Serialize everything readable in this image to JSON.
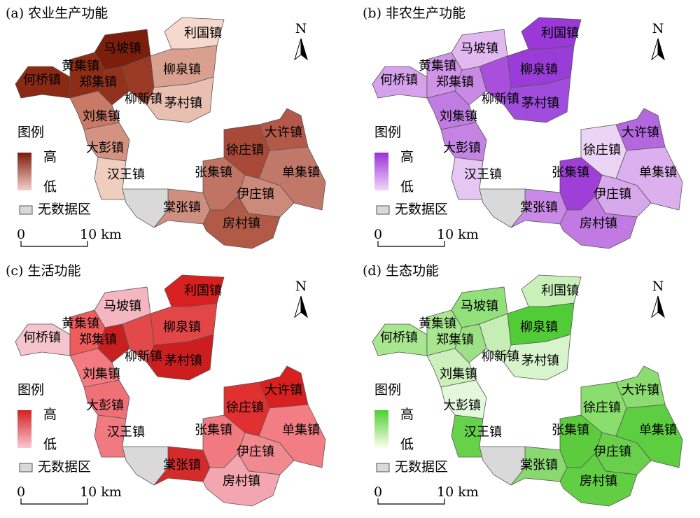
{
  "towns": [
    "何桥镇",
    "黄集镇",
    "马坡镇",
    "郑集镇",
    "柳新镇",
    "刘集镇",
    "利国镇",
    "柳泉镇",
    "茅村镇",
    "大彭镇",
    "汉王镇",
    "大许镇",
    "徐庄镇",
    "张集镇",
    "单集镇",
    "伊庄镇",
    "棠张镇",
    "房村镇"
  ],
  "no_data_color": "#d9d9d9",
  "panels": [
    {
      "title": "(a) 农业生产功能",
      "legend_title": "图例",
      "legend_high": "高",
      "legend_low": "低",
      "no_data": "无数据区",
      "scale_start": "0",
      "scale_end": "10 km",
      "north": "N",
      "gradient": [
        "#7a1a0a",
        "#f6d0cc"
      ],
      "fills": [
        "#8b2a14",
        "#8e2c16",
        "#7c1e0c",
        "#93321c",
        "#9a3a24",
        "#c97a66",
        "#f6d8cc",
        "#d9a090",
        "#e8bfb0",
        "#d39282",
        "#efcdbf",
        "#b3594a",
        "#a84a37",
        "#c07564",
        "#c27868",
        "#cc8a7a",
        "#cf8f80",
        "#b05a47"
      ]
    },
    {
      "title": "(b) 非农生产功能",
      "legend_title": "图例",
      "legend_high": "高",
      "legend_low": "低",
      "no_data": "无数据区",
      "scale_start": "0",
      "scale_end": "10 km",
      "north": "N",
      "gradient": [
        "#9a30d8",
        "#f0d8f8"
      ],
      "fills": [
        "#d7a2ec",
        "#cf93e8",
        "#e2b8f0",
        "#c98ae6",
        "#a850dc",
        "#c07ce2",
        "#9a38d8",
        "#9a3cd8",
        "#a04cdc",
        "#c584e4",
        "#e6c6f2",
        "#b468e0",
        "#ecd4f5",
        "#a03ed8",
        "#dcb0ee",
        "#d8a8ec",
        "#c88ae6",
        "#c07ae2"
      ]
    },
    {
      "title": "(c) 生活功能",
      "legend_title": "图例",
      "legend_high": "高",
      "legend_low": "低",
      "no_data": "无数据区",
      "scale_start": "0",
      "scale_end": "10 km",
      "north": "N",
      "gradient": [
        "#d42020",
        "#f8c8d0"
      ],
      "fills": [
        "#f6c4cc",
        "#ee5c5c",
        "#f4b6c0",
        "#c82020",
        "#e24a4a",
        "#f27a80",
        "#d92020",
        "#e24646",
        "#cc1e1e",
        "#f07078",
        "#f07a80",
        "#d82020",
        "#e03030",
        "#f07a80",
        "#f27e84",
        "#f08a90",
        "#d42a2a",
        "#f4a6b0"
      ]
    },
    {
      "title": "(d) 生态功能",
      "legend_title": "图例",
      "legend_high": "高",
      "legend_low": "低",
      "no_data": "无数据区",
      "scale_start": "0",
      "scale_end": "10 km",
      "north": "N",
      "gradient": [
        "#4cd030",
        "#fefef0"
      ],
      "fills": [
        "#a8e690",
        "#a8e690",
        "#92e07a",
        "#9ee086",
        "#c4eeb4",
        "#ccf0bc",
        "#c8f0b8",
        "#52cc36",
        "#d8f4cc",
        "#e4f8dc",
        "#66d24a",
        "#8cdc70",
        "#8ade6e",
        "#5ccc3e",
        "#5cce40",
        "#6ad04c",
        "#8ad870",
        "#62ce44"
      ]
    }
  ]
}
